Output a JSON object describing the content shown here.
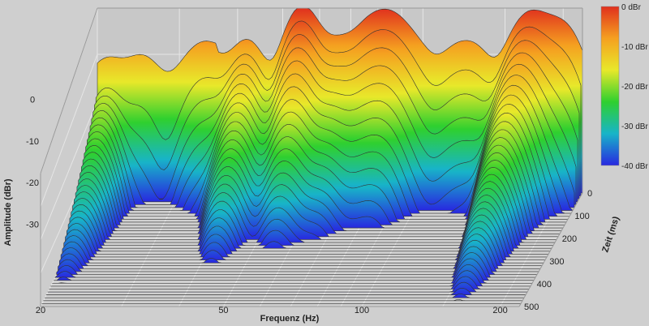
{
  "chart_data": {
    "type": "waterfall",
    "xlabel": "Frequenz (Hz)",
    "ylabel": "Amplitude (dBr)",
    "zlabel": "Zeit (ms)",
    "x_ticks": [
      "20",
      "50",
      "100",
      "200"
    ],
    "amplitude_ticks": [
      "0",
      "-10",
      "-20",
      "-30"
    ],
    "time_ticks": [
      "0",
      "100",
      "200",
      "300",
      "400",
      "500"
    ],
    "x_scale": "log",
    "xlim": [
      20,
      220
    ],
    "amplitude_range_dbr": [
      -40,
      0
    ],
    "time_range_ms": [
      0,
      500
    ],
    "colorbar": {
      "labels": [
        "0 dBr",
        "-10 dBr",
        "-20 dBr",
        "-30 dBr",
        "-40 dBr"
      ],
      "colors": [
        "#e0301e",
        "#f5a020",
        "#e8e82a",
        "#2fd02f",
        "#18b4c8",
        "#2828e0"
      ]
    },
    "grid": true,
    "slices": 40,
    "peaks_at_t0": [
      {
        "freq_hz": 21,
        "level_dbr": -16,
        "decay_ms": 500
      },
      {
        "freq_hz": 25,
        "level_dbr": -15,
        "decay_ms": 60
      },
      {
        "freq_hz": 32,
        "level_dbr": -17,
        "decay_ms": 70
      },
      {
        "freq_hz": 35,
        "level_dbr": -13,
        "decay_ms": 100
      },
      {
        "freq_hz": 42,
        "level_dbr": -8,
        "decay_ms": 300
      },
      {
        "freq_hz": 55,
        "level_dbr": 0,
        "decay_ms": 190
      },
      {
        "freq_hz": 66,
        "level_dbr": -9,
        "decay_ms": 200
      },
      {
        "freq_hz": 77,
        "level_dbr": -5,
        "decay_ms": 120
      },
      {
        "freq_hz": 86,
        "level_dbr": -4,
        "decay_ms": 130
      },
      {
        "freq_hz": 97,
        "level_dbr": -11,
        "decay_ms": 90
      },
      {
        "freq_hz": 116,
        "level_dbr": -12,
        "decay_ms": 80
      },
      {
        "freq_hz": 130,
        "level_dbr": -11,
        "decay_ms": 90
      },
      {
        "freq_hz": 160,
        "level_dbr": -10,
        "decay_ms": 480
      },
      {
        "freq_hz": 172,
        "level_dbr": -5,
        "decay_ms": 160
      },
      {
        "freq_hz": 190,
        "level_dbr": -10,
        "decay_ms": 90
      },
      {
        "freq_hz": 205,
        "level_dbr": -8,
        "decay_ms": 70
      }
    ]
  }
}
